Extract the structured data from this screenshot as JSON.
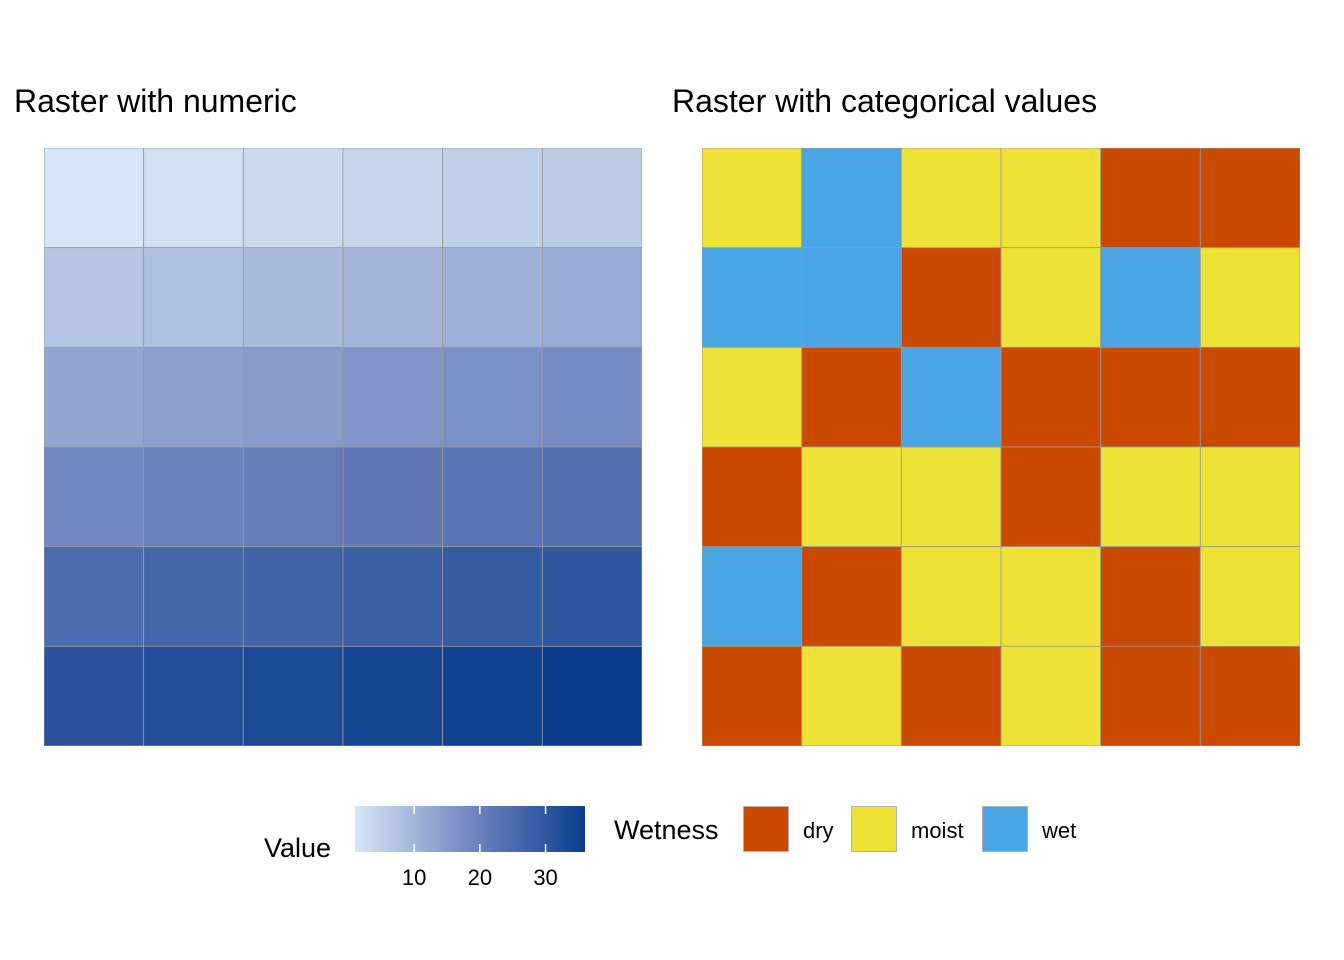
{
  "chart_data": [
    {
      "type": "heatmap",
      "title": "Raster with numeric",
      "rows": 6,
      "cols": 6,
      "values": [
        [
          1,
          2,
          3,
          4,
          5,
          6
        ],
        [
          7,
          8,
          9,
          10,
          11,
          12
        ],
        [
          13,
          14,
          15,
          16,
          17,
          18
        ],
        [
          19,
          20,
          21,
          22,
          23,
          24
        ],
        [
          25,
          26,
          27,
          28,
          29,
          30
        ],
        [
          31,
          32,
          33,
          34,
          35,
          36
        ]
      ],
      "legend": {
        "title": "Value",
        "type": "continuous",
        "range": [
          1,
          36
        ],
        "ticks": [
          10,
          20,
          30
        ],
        "colors": [
          "#d6e6f5",
          "#7388c1",
          "#0b3d8c"
        ]
      }
    },
    {
      "type": "heatmap",
      "title": "Raster with categorical values",
      "rows": 6,
      "cols": 6,
      "values": [
        [
          "moist",
          "wet",
          "moist",
          "moist",
          "dry",
          "dry"
        ],
        [
          "wet",
          "wet",
          "dry",
          "moist",
          "wet",
          "moist"
        ],
        [
          "moist",
          "dry",
          "wet",
          "dry",
          "dry",
          "dry"
        ],
        [
          "dry",
          "moist",
          "moist",
          "dry",
          "moist",
          "moist"
        ],
        [
          "wet",
          "dry",
          "moist",
          "moist",
          "dry",
          "moist"
        ],
        [
          "dry",
          "moist",
          "dry",
          "moist",
          "dry",
          "dry"
        ]
      ],
      "legend": {
        "title": "Wetness",
        "type": "categorical",
        "categories": [
          "dry",
          "moist",
          "wet"
        ],
        "colors": {
          "dry": "#cb4a02",
          "moist": "#eee236",
          "wet": "#4aa5e4"
        }
      }
    }
  ],
  "grid_line_color": "#999999"
}
